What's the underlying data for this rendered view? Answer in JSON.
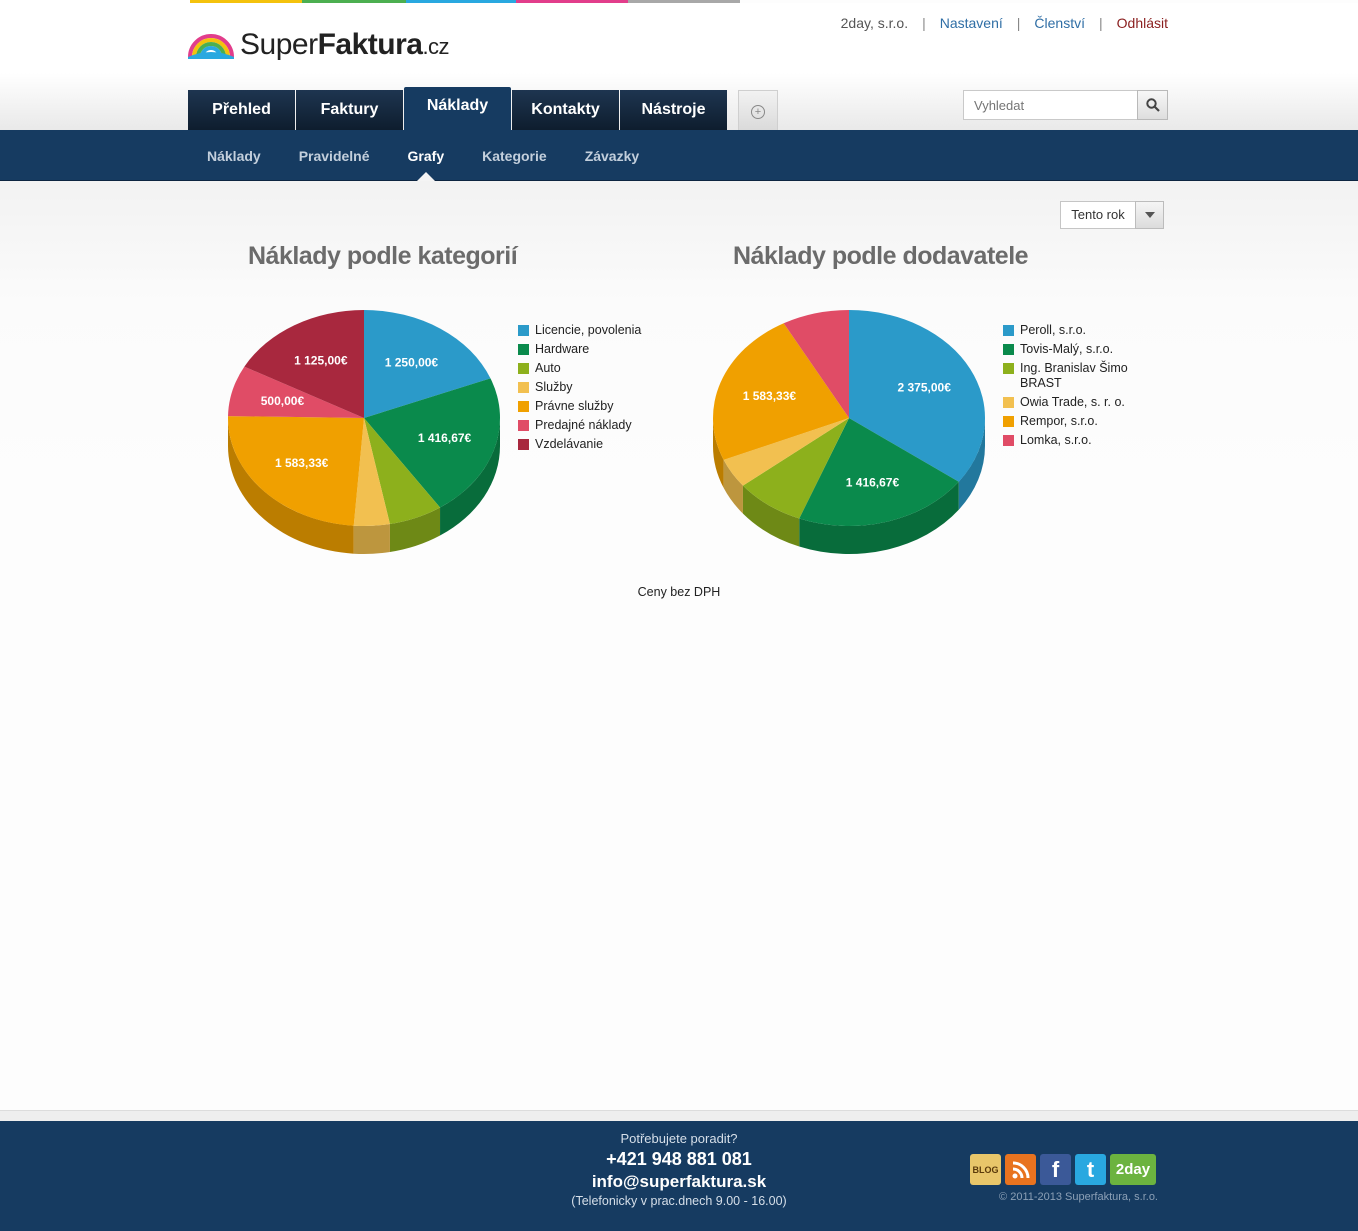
{
  "colors": {
    "stripe": [
      "#f4c20d",
      "#4caf50",
      "#29a8e0",
      "#e23d8b",
      "#9e9e9e"
    ],
    "tab_underlines": [
      "#f4c20d",
      "#4caf50",
      "#163b61",
      "#d63384",
      "#8a8a8a"
    ],
    "navy": "#163b61"
  },
  "logo": {
    "text_light": "Super",
    "text_bold": "Faktura",
    "text_tld": ".cz"
  },
  "toplinks": {
    "company": "2day, s.r.o.",
    "settings": "Nastavení",
    "membership": "Členství",
    "logout": "Odhlásit"
  },
  "tabs": [
    "Přehled",
    "Faktury",
    "Náklady",
    "Kontakty",
    "Nástroje"
  ],
  "search": {
    "placeholder": "Vyhledat",
    "icon": "search-icon"
  },
  "subnav": [
    "Náklady",
    "Pravidelné",
    "Grafy",
    "Kategorie",
    "Závazky"
  ],
  "period": {
    "selected": "Tento rok"
  },
  "chart_data": [
    {
      "type": "pie",
      "title": "Náklady podle kategorií",
      "slices": [
        {
          "name": "Licencie, povolenia",
          "value": 1250.0,
          "label": "1 250,00€",
          "color": "#2b9ac9"
        },
        {
          "name": "Hardware",
          "value": 1416.67,
          "label": "1 416,67€",
          "color": "#0a8a4c"
        },
        {
          "name": "Auto",
          "value": 420,
          "label": "",
          "color": "#8db01c"
        },
        {
          "name": "Služby",
          "value": 280,
          "label": "",
          "color": "#f2c050"
        },
        {
          "name": "Právne služby",
          "value": 1583.33,
          "label": "1 583,33€",
          "color": "#f0a000"
        },
        {
          "name": "Predajné náklady",
          "value": 500.0,
          "label": "500,00€",
          "color": "#e04c66"
        },
        {
          "name": "Vzdelávanie",
          "value": 1125.0,
          "label": "1 125,00€",
          "color": "#a8283e"
        }
      ]
    },
    {
      "type": "pie",
      "title": "Náklady podle dodavatele",
      "slices": [
        {
          "name": "Peroll, s.r.o.",
          "value": 2375.0,
          "label": "2 375,00€",
          "color": "#2b9ac9"
        },
        {
          "name": "Tovis-Malý, s.r.o.",
          "value": 1416.67,
          "label": "1 416,67€",
          "color": "#0a8a4c"
        },
        {
          "name": "Ing. Branislav Šimo BRAST",
          "value": 560,
          "label": "",
          "color": "#8db01c"
        },
        {
          "name": "Owia Trade, s. r. o.",
          "value": 300,
          "label": "",
          "color": "#f2c050"
        },
        {
          "name": "Rempor, s.r.o.",
          "value": 1583.33,
          "label": "1 583,33€",
          "color": "#f0a000"
        },
        {
          "name": "Lomka, s.r.o.",
          "value": 540,
          "label": "",
          "color": "#e04c66"
        }
      ]
    }
  ],
  "footnote": "Ceny bez DPH",
  "footer": {
    "help": "Potřebujete poradit?",
    "phone": "+421 948 881 081",
    "email": "info@superfaktura.sk",
    "hours": "(Telefonicky v prac.dnech 9.00 - 16.00)",
    "social": [
      {
        "icon": "blog-icon",
        "text": "BLOG",
        "color": "#e8c66a"
      },
      {
        "icon": "rss-icon",
        "text": "",
        "color": "#e8731f"
      },
      {
        "icon": "facebook-icon",
        "text": "f",
        "color": "#3b5998"
      },
      {
        "icon": "twitter-icon",
        "text": "t",
        "color": "#29a8e0"
      },
      {
        "icon": "2day-icon",
        "text": "2day",
        "color": "#6cb33f"
      }
    ],
    "copyright": "© 2011-2013 Superfaktura, s.r.o."
  }
}
